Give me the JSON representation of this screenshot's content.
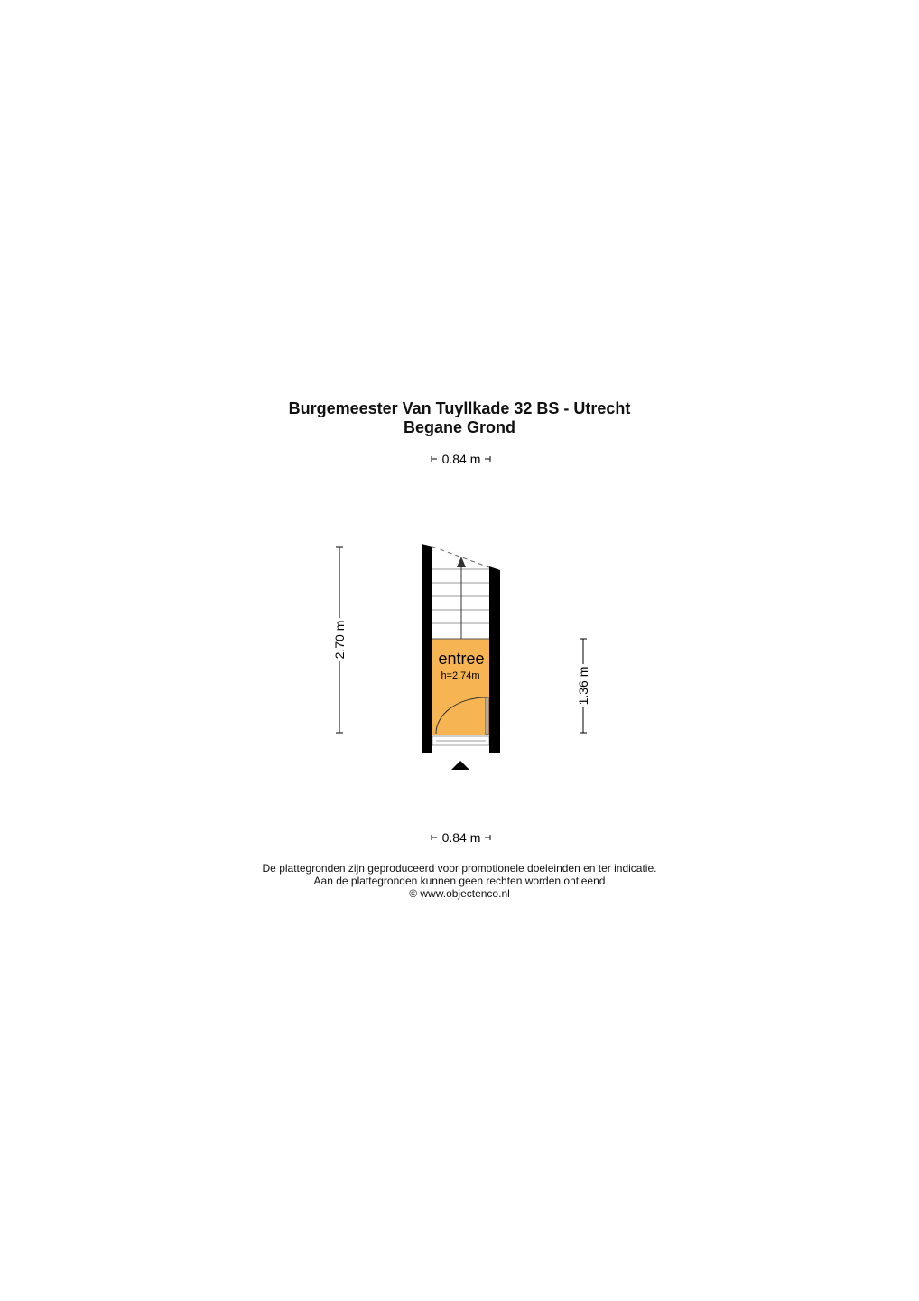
{
  "header": {
    "address": "Burgemeester Van Tuyllkade 32 BS - Utrecht",
    "floor": "Begane Grond"
  },
  "dimensions": {
    "top_width": "0.84 m",
    "bottom_width": "0.84 m",
    "left_height": "2.70 m",
    "right_height": "1.36 m"
  },
  "rooms": [
    {
      "name": "entree",
      "height": "h=2.74m",
      "color": "#F7B452"
    }
  ],
  "colors": {
    "wall": "#000000",
    "room_fill": "#F7B452"
  },
  "footer": {
    "line1": "De plattegronden zijn geproduceerd voor promotionele doeleinden en ter indicatie.",
    "line2": "Aan de plattegronden kunnen geen rechten worden ontleend",
    "line3": "© www.objectenco.nl"
  }
}
